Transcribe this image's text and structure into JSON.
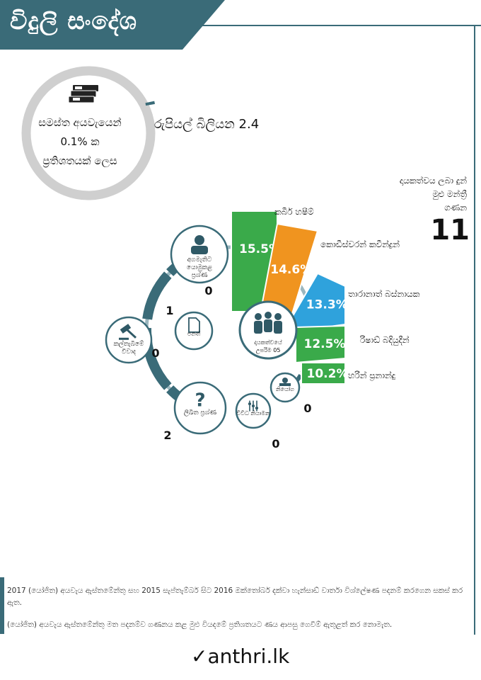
{
  "header": {
    "title": "විදුලි සංදේශ"
  },
  "budget": {
    "line1": "සමස්ත අයවැයෙන්",
    "line2": "0.1% ක",
    "line3": "ප්‍රතිශතයක් ලෙස",
    "amount": "රුපියල් බිලියන 2.4",
    "ring_fraction": 0.01
  },
  "mp": {
    "label_line1": "දායකත්වය ලබා දුන්",
    "label_line2": "මුළු මන්ත්‍රී",
    "label_line3": "ගණන",
    "count": "11"
  },
  "chart_data": [
    {
      "type": "bar",
      "title": "දායකත්වයේ උපරිම 05",
      "categories": [
        "කබීර් හෂීම්",
        "කොඩීස්වරන් කවීන්ද්‍රන්",
        "තාරානාත් බස්නායක",
        "රිෂාඩ් බදියුදීන්",
        "හරින් ප්‍රනාන්දු"
      ],
      "values": [
        15.5,
        14.6,
        13.3,
        12.5,
        10.2
      ],
      "labels": [
        "15.5%",
        "14.6%",
        "13.3%",
        "12.5%",
        "10.2%"
      ],
      "colors": [
        "#3aaa4a",
        "#f0941f",
        "#2fa2dc",
        "#3aaa4a",
        "#3aaa4a"
      ]
    },
    {
      "type": "pie",
      "title": "",
      "categories": [
        "අගමැතිට යොමුකළ ප්‍රශ්ණ",
        "පනත්",
        "කල්තැබීමේ විවාද",
        "ලිඛිත ප්‍රශ්ණ",
        "විවිධ නියාමන",
        "නියෝග"
      ],
      "values": [
        0,
        1,
        0,
        2,
        0,
        0
      ],
      "value_labels": [
        "0",
        "1",
        "0",
        "2",
        "0",
        "0"
      ]
    }
  ],
  "colors": {
    "teal": "#3a6b78",
    "light_teal": "#9bb7bf",
    "grey_ring": "#cfcfcf",
    "icon_dark": "#2f5966"
  },
  "icons": {
    "money": "money-stack-icon",
    "person": "person-icon",
    "document": "document-icon",
    "gavel": "gavel-icon",
    "question": "question-icon",
    "group": "group-icon",
    "sliders": "sliders-icon",
    "stamp": "stamp-icon"
  },
  "footer": {
    "note1": "2017 (යෝජිත) අයවැය ඇස්තමේන්තු සහ 2015 සැප්තැම්බර් සිට 2016 ඔක්තෝබර් දක්වා හැන්සාඩ් වාර්තා විශ්ලේෂණ පදනම් කරගෙන සකස් කර ඇත.",
    "note2": "(යෝජිත) අයවැය ඇස්තමේන්තු මත පදනම්ව ගණනය කළ මුළු වියදමේ ප්‍රතිශතයට ණය ආපසු ගෙවීම් ඇතුළත් කර නොමැත.",
    "logo_text": "anthri.lk",
    "logo_mark": "✓"
  }
}
